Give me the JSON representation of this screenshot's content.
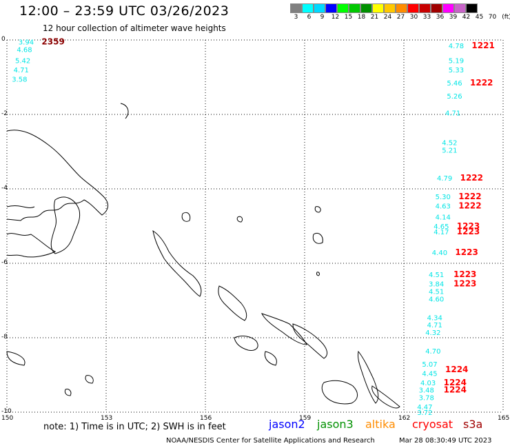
{
  "title": "12:00 – 23:59 UTC 03/26/2023",
  "subtitle": "12 hour collection of altimeter wave heights",
  "scale": {
    "colors": [
      "#808080",
      "#00ffff",
      "#00d8ff",
      "#0000ff",
      "#00ff00",
      "#00c800",
      "#009000",
      "#ffff00",
      "#ffc800",
      "#ff8c00",
      "#ff0000",
      "#c80000",
      "#a00000",
      "#ff00ff",
      "#c864c8",
      "#000000"
    ],
    "labels": [
      "3",
      "6",
      "9",
      "12",
      "15",
      "18",
      "21",
      "24",
      "27",
      "30",
      "33",
      "36",
      "39",
      "42",
      "45",
      "70"
    ],
    "unit": "(ft)"
  },
  "axes": {
    "x_ticks": [
      "150",
      "153",
      "156",
      "159",
      "162",
      "165"
    ],
    "y_ticks": [
      "0",
      "-2",
      "-4",
      "-6",
      "-8",
      "-10"
    ]
  },
  "observations": [
    {
      "sat": "cryosat",
      "color": "#00e5e5",
      "text": "3.94",
      "x": 150.35,
      "y": -0.05
    },
    {
      "sat": "s3a",
      "color": "#8b0000",
      "text": "2359",
      "x": 151.05,
      "y": -0.05
    },
    {
      "sat": "cryosat",
      "color": "#00e5e5",
      "text": "4.68",
      "x": 150.3,
      "y": -0.25
    },
    {
      "sat": "cryosat",
      "color": "#00e5e5",
      "text": "5.42",
      "x": 150.25,
      "y": -0.55
    },
    {
      "sat": "cryosat",
      "color": "#00e5e5",
      "text": "4.71",
      "x": 150.2,
      "y": -0.8
    },
    {
      "sat": "cryosat",
      "color": "#00e5e5",
      "text": "3.58",
      "x": 150.15,
      "y": -1.05
    },
    {
      "sat": "cryosat",
      "color": "#00e5e5",
      "text": "4.78",
      "x": 163.35,
      "y": -0.15
    },
    {
      "sat": "cryosat",
      "color": "#ff0000",
      "text": "1221",
      "x": 164.05,
      "y": -0.15
    },
    {
      "sat": "cryosat",
      "color": "#00e5e5",
      "text": "5.19",
      "x": 163.35,
      "y": -0.55
    },
    {
      "sat": "cryosat",
      "color": "#00e5e5",
      "text": "5.33",
      "x": 163.35,
      "y": -0.8
    },
    {
      "sat": "cryosat",
      "color": "#00e5e5",
      "text": "5.46",
      "x": 163.3,
      "y": -1.15
    },
    {
      "sat": "cryosat",
      "color": "#ff0000",
      "text": "1222",
      "x": 164.0,
      "y": -1.15
    },
    {
      "sat": "cryosat",
      "color": "#00e5e5",
      "text": "5.26",
      "x": 163.3,
      "y": -1.5
    },
    {
      "sat": "cryosat",
      "color": "#00e5e5",
      "text": "4.71",
      "x": 163.25,
      "y": -1.95
    },
    {
      "sat": "cryosat",
      "color": "#00e5e5",
      "text": "4.52",
      "x": 163.15,
      "y": -2.75
    },
    {
      "sat": "cryosat",
      "color": "#00e5e5",
      "text": "5.21",
      "x": 163.15,
      "y": -2.95
    },
    {
      "sat": "cryosat",
      "color": "#00e5e5",
      "text": "4.79",
      "x": 163.0,
      "y": -3.7
    },
    {
      "sat": "cryosat",
      "color": "#ff0000",
      "text": "1222",
      "x": 163.7,
      "y": -3.7
    },
    {
      "sat": "cryosat",
      "color": "#00e5e5",
      "text": "5.30",
      "x": 162.95,
      "y": -4.2
    },
    {
      "sat": "cryosat",
      "color": "#ff0000",
      "text": "1222",
      "x": 163.65,
      "y": -4.2
    },
    {
      "sat": "cryosat",
      "color": "#00e5e5",
      "text": "4.63",
      "x": 162.95,
      "y": -4.45
    },
    {
      "sat": "cryosat",
      "color": "#ff0000",
      "text": "1222",
      "x": 163.65,
      "y": -4.45
    },
    {
      "sat": "cryosat",
      "color": "#00e5e5",
      "text": "4.14",
      "x": 162.95,
      "y": -4.75
    },
    {
      "sat": "cryosat",
      "color": "#00e5e5",
      "text": "4.65",
      "x": 162.9,
      "y": -5.0
    },
    {
      "sat": "cryosat",
      "color": "#ff0000",
      "text": "1223",
      "x": 163.6,
      "y": -5.0
    },
    {
      "sat": "cryosat",
      "color": "#00e5e5",
      "text": "4.17",
      "x": 162.9,
      "y": -5.15
    },
    {
      "sat": "cryosat",
      "color": "#ff0000",
      "text": "1223",
      "x": 163.6,
      "y": -5.15
    },
    {
      "sat": "cryosat",
      "color": "#00e5e5",
      "text": "4.40",
      "x": 162.85,
      "y": -5.7
    },
    {
      "sat": "cryosat",
      "color": "#ff0000",
      "text": "1223",
      "x": 163.55,
      "y": -5.7
    },
    {
      "sat": "cryosat",
      "color": "#00e5e5",
      "text": "4.51",
      "x": 162.75,
      "y": -6.3
    },
    {
      "sat": "cryosat",
      "color": "#ff0000",
      "text": "1223",
      "x": 163.5,
      "y": -6.3
    },
    {
      "sat": "cryosat",
      "color": "#00e5e5",
      "text": "3.84",
      "x": 162.75,
      "y": -6.55
    },
    {
      "sat": "cryosat",
      "color": "#ff0000",
      "text": "1223",
      "x": 163.5,
      "y": -6.55
    },
    {
      "sat": "cryosat",
      "color": "#00e5e5",
      "text": "4.51",
      "x": 162.75,
      "y": -6.75
    },
    {
      "sat": "cryosat",
      "color": "#00e5e5",
      "text": "4.60",
      "x": 162.75,
      "y": -6.95
    },
    {
      "sat": "cryosat",
      "color": "#00e5e5",
      "text": "4.34",
      "x": 162.7,
      "y": -7.45
    },
    {
      "sat": "cryosat",
      "color": "#00e5e5",
      "text": "4.71",
      "x": 162.7,
      "y": -7.65
    },
    {
      "sat": "cryosat",
      "color": "#00e5e5",
      "text": "4.32",
      "x": 162.65,
      "y": -7.85
    },
    {
      "sat": "cryosat",
      "color": "#00e5e5",
      "text": "4.70",
      "x": 162.65,
      "y": -8.35
    },
    {
      "sat": "cryosat",
      "color": "#00e5e5",
      "text": "5.07",
      "x": 162.55,
      "y": -8.7
    },
    {
      "sat": "cryosat",
      "color": "#00e5e5",
      "text": "4.45",
      "x": 162.55,
      "y": -8.95
    },
    {
      "sat": "cryosat",
      "color": "#ff0000",
      "text": "1224",
      "x": 163.25,
      "y": -8.85
    },
    {
      "sat": "cryosat",
      "color": "#00e5e5",
      "text": "4.03",
      "x": 162.5,
      "y": -9.2
    },
    {
      "sat": "cryosat",
      "color": "#ff0000",
      "text": "1224",
      "x": 163.2,
      "y": -9.2
    },
    {
      "sat": "cryosat",
      "color": "#00e5e5",
      "text": "3.48",
      "x": 162.45,
      "y": -9.4
    },
    {
      "sat": "cryosat",
      "color": "#ff0000",
      "text": "1224",
      "x": 163.2,
      "y": -9.4
    },
    {
      "sat": "cryosat",
      "color": "#00e5e5",
      "text": "3.78",
      "x": 162.45,
      "y": -9.6
    },
    {
      "sat": "cryosat",
      "color": "#00e5e5",
      "text": "4.47",
      "x": 162.4,
      "y": -9.85
    },
    {
      "sat": "cryosat",
      "color": "#00e5e5",
      "text": "3.72",
      "x": 162.4,
      "y": -10.0
    }
  ],
  "note": "note: 1) Time is in UTC; 2) SWH is in feet",
  "satellites": [
    {
      "label": "jason2",
      "color": "#0000ff"
    },
    {
      "label": "jason3",
      "color": "#009000"
    },
    {
      "label": "altika",
      "color": "#ff8c00"
    },
    {
      "label": "cryosat",
      "color": "#ff0000"
    },
    {
      "label": "s3a",
      "color": "#a00000"
    }
  ],
  "footer": "NOAA/NESDIS Center for Satellite Applications and Research",
  "footer_date": "Mar 28 08:30:49 UTC 2023"
}
